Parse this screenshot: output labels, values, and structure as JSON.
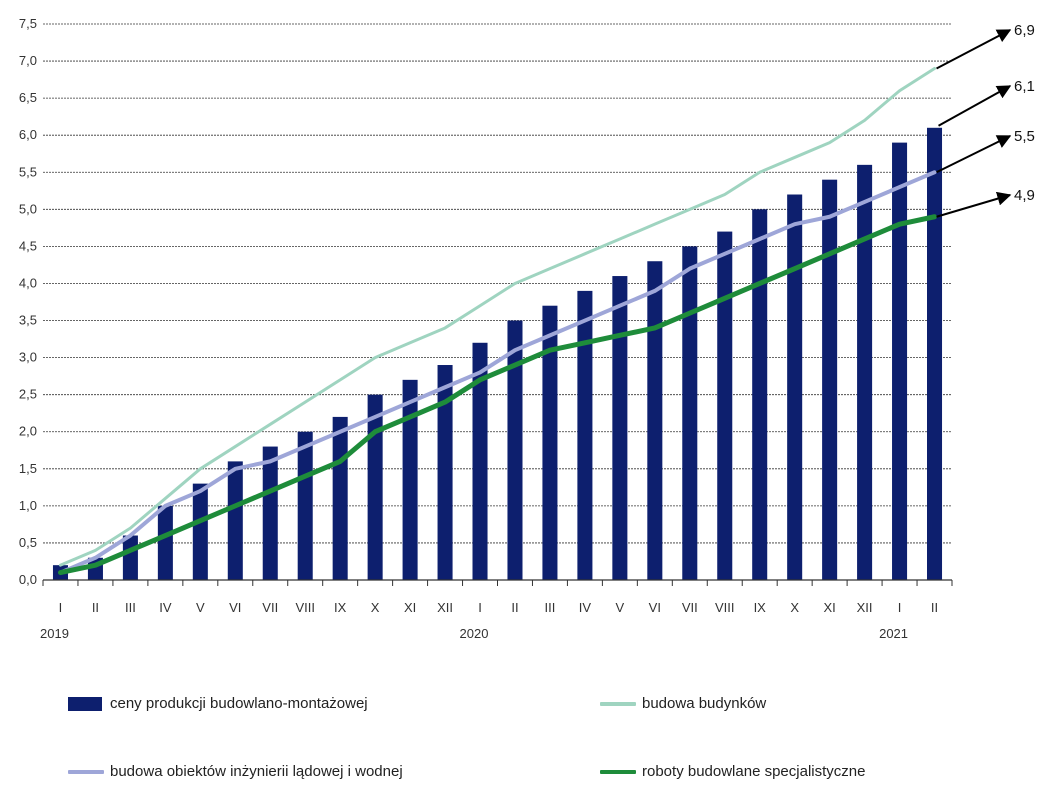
{
  "chart_data": {
    "type": "bar+line",
    "x_months": [
      "I",
      "II",
      "III",
      "IV",
      "V",
      "VI",
      "VII",
      "VIII",
      "IX",
      "X",
      "XI",
      "XII",
      "I",
      "II",
      "III",
      "IV",
      "V",
      "VI",
      "VII",
      "VIII",
      "IX",
      "X",
      "XI",
      "XII",
      "I",
      "II"
    ],
    "x_years": [
      {
        "label": "2019",
        "index": 0
      },
      {
        "label": "2020",
        "index": 12
      },
      {
        "label": "2021",
        "index": 24
      }
    ],
    "ylim": [
      0,
      7.5
    ],
    "yticks": [
      "0,0",
      "0,5",
      "1,0",
      "1,5",
      "2,0",
      "2,5",
      "3,0",
      "3,5",
      "4,0",
      "4,5",
      "5,0",
      "5,5",
      "6,0",
      "6,5",
      "7,0",
      "7,5"
    ],
    "grid": true,
    "series": [
      {
        "name": "ceny produkcji budowlano-montażowej",
        "kind": "bar",
        "color": "#0d1f6e",
        "values": [
          0.2,
          0.3,
          0.6,
          1.0,
          1.3,
          1.6,
          1.8,
          2.0,
          2.2,
          2.5,
          2.7,
          2.9,
          3.2,
          3.5,
          3.7,
          3.9,
          4.1,
          4.3,
          4.5,
          4.7,
          5.0,
          5.2,
          5.4,
          5.6,
          5.9,
          6.1
        ]
      },
      {
        "name": "budowa budynków",
        "kind": "line",
        "color": "#9fd4c0",
        "values": [
          0.2,
          0.4,
          0.7,
          1.1,
          1.5,
          1.8,
          2.1,
          2.4,
          2.7,
          3.0,
          3.2,
          3.4,
          3.7,
          4.0,
          4.2,
          4.4,
          4.6,
          4.8,
          5.0,
          5.2,
          5.5,
          5.7,
          5.9,
          6.2,
          6.6,
          6.9
        ]
      },
      {
        "name": "budowa  obiektów inżynierii lądowej i wodnej",
        "kind": "line",
        "color": "#9ea6d8",
        "values": [
          0.1,
          0.3,
          0.6,
          1.0,
          1.2,
          1.5,
          1.6,
          1.8,
          2.0,
          2.2,
          2.4,
          2.6,
          2.8,
          3.1,
          3.3,
          3.5,
          3.7,
          3.9,
          4.2,
          4.4,
          4.6,
          4.8,
          4.9,
          5.1,
          5.3,
          5.5
        ]
      },
      {
        "name": "roboty budowlane specjalistyczne",
        "kind": "line",
        "color": "#1e8c3a",
        "values": [
          0.1,
          0.2,
          0.4,
          0.6,
          0.8,
          1.0,
          1.2,
          1.4,
          1.6,
          2.0,
          2.2,
          2.4,
          2.7,
          2.9,
          3.1,
          3.2,
          3.3,
          3.4,
          3.6,
          3.8,
          4.0,
          4.2,
          4.4,
          4.6,
          4.8,
          4.9
        ]
      }
    ],
    "end_labels": [
      {
        "text": "6,9",
        "value": 6.9,
        "series": 1
      },
      {
        "text": "6,1",
        "value": 6.1,
        "series": 0
      },
      {
        "text": "5,5",
        "value": 5.5,
        "series": 2
      },
      {
        "text": "4,9",
        "value": 4.9,
        "series": 3
      }
    ]
  },
  "legend": {
    "bar_label": "ceny produkcji budowlano-montażowej",
    "budynki_label": "budowa budynków",
    "inzynieria_label": "budowa  obiektów inżynierii lądowej i wodnej",
    "specjalistyczne_label": "roboty budowlane specjalistyczne"
  }
}
